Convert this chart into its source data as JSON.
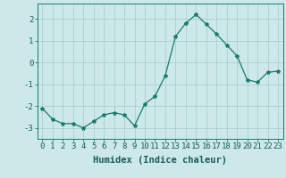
{
  "x": [
    0,
    1,
    2,
    3,
    4,
    5,
    6,
    7,
    8,
    9,
    10,
    11,
    12,
    13,
    14,
    15,
    16,
    17,
    18,
    19,
    20,
    21,
    22,
    23
  ],
  "y": [
    -2.1,
    -2.6,
    -2.8,
    -2.8,
    -3.0,
    -2.7,
    -2.4,
    -2.3,
    -2.4,
    -2.9,
    -1.9,
    -1.55,
    -0.6,
    1.2,
    1.8,
    2.2,
    1.75,
    1.3,
    0.8,
    0.3,
    -0.8,
    -0.9,
    -0.45,
    -0.4
  ],
  "line_color": "#1a7a6e",
  "marker": "*",
  "marker_size": 3,
  "bg_color": "#cde8e8",
  "grid_color": "#aacfcf",
  "xlabel": "Humidex (Indice chaleur)",
  "ylim": [
    -3.5,
    2.7
  ],
  "xlim": [
    -0.5,
    23.5
  ],
  "yticks": [
    -3,
    -2,
    -1,
    0,
    1,
    2
  ],
  "xticks": [
    0,
    1,
    2,
    3,
    4,
    5,
    6,
    7,
    8,
    9,
    10,
    11,
    12,
    13,
    14,
    15,
    16,
    17,
    18,
    19,
    20,
    21,
    22,
    23
  ],
  "tick_label_fontsize": 6.5,
  "xlabel_fontsize": 7.5,
  "tick_color": "#1a5a5a",
  "spine_color": "#1a7a6e"
}
